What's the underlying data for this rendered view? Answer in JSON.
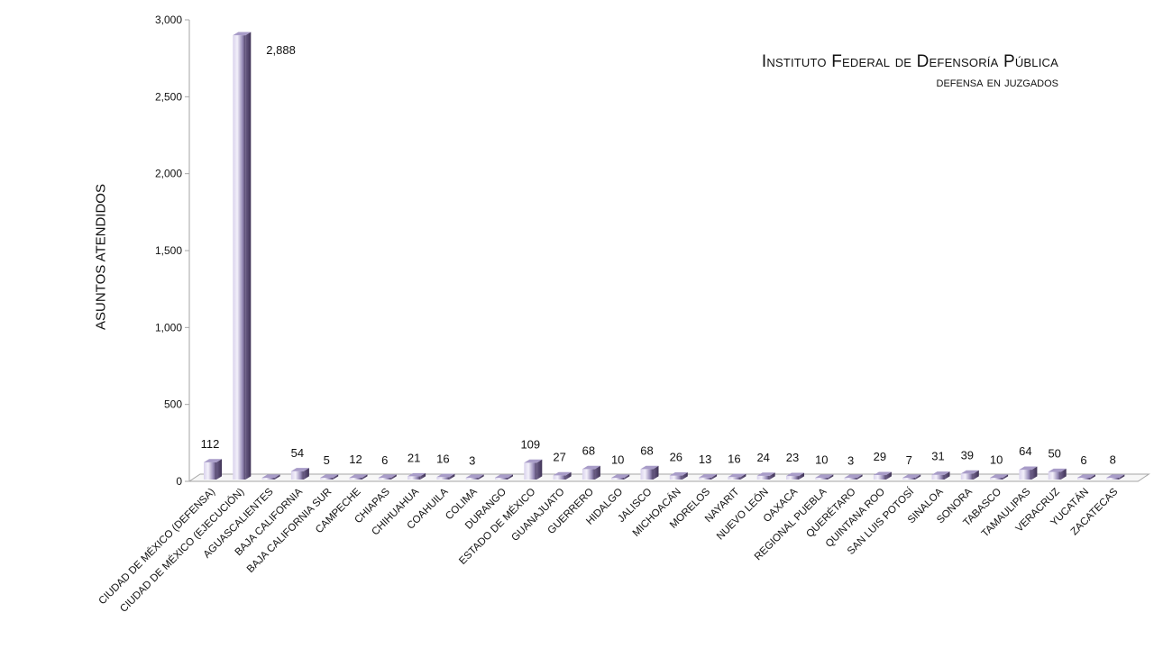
{
  "chart_data": {
    "type": "bar",
    "title_line1": "Instituto Federal de Defensoría Pública",
    "title_line2": "defensa en juzgados",
    "ylabel": "ASUNTOS ATENDIDOS",
    "xlabel": "",
    "ylim": [
      0,
      3000
    ],
    "yticks": [
      0,
      500,
      1000,
      1500,
      2000,
      2500,
      3000
    ],
    "ytick_labels": [
      "0",
      "500",
      "1,000",
      "1,500",
      "2,000",
      "2,500",
      "3,000"
    ],
    "grid": false,
    "categories": [
      "CIUDAD DE MÉXICO   (DEFENSA)",
      "CIUDAD DE MÉXICO   (EJECUCIÓN)",
      "AGUASCALIENTES",
      "BAJA CALIFORNIA",
      "BAJA CALIFORNIA SUR",
      "CAMPECHE",
      "CHIAPAS",
      "CHIHUAHUA",
      "COAHUILA",
      "COLIMA",
      "DURANGO",
      "ESTADO DE MÉXICO",
      "GUANAJUATO",
      "GUERRERO",
      "HIDALGO",
      "JALISCO",
      "MICHOACÁN",
      "MORELOS",
      "NAYARIT",
      "NUEVO LEÓN",
      "OAXACA",
      "REGIONAL PUEBLA",
      "QUERÉTARO",
      "QUINTANA ROO",
      "SAN LUIS POTOSÍ",
      "SINALOA",
      "SONORA",
      "TABASCO",
      "TAMAULIPAS",
      "VERACRUZ",
      "YUCATÁN",
      "ZACATECAS"
    ],
    "values": [
      112,
      2888,
      0,
      54,
      5,
      12,
      6,
      21,
      16,
      3,
      0,
      109,
      27,
      68,
      10,
      68,
      26,
      13,
      16,
      24,
      23,
      10,
      3,
      29,
      7,
      31,
      39,
      10,
      64,
      50,
      6,
      8
    ],
    "data_labels": [
      "112",
      "2,888",
      "",
      "54",
      "5",
      "12",
      "6",
      "21",
      "16",
      "3",
      "",
      "109",
      "27",
      "68",
      "10",
      "68",
      "26",
      "13",
      "16",
      "24",
      "23",
      "10",
      "3",
      "29",
      "7",
      "31",
      "39",
      "10",
      "64",
      "50",
      "6",
      "8"
    ],
    "colors": {
      "bar_light": "#ece8f6",
      "bar_mid": "#b3a8d0",
      "bar_dark": "#5e5078",
      "axis": "#a6a6a6"
    }
  }
}
